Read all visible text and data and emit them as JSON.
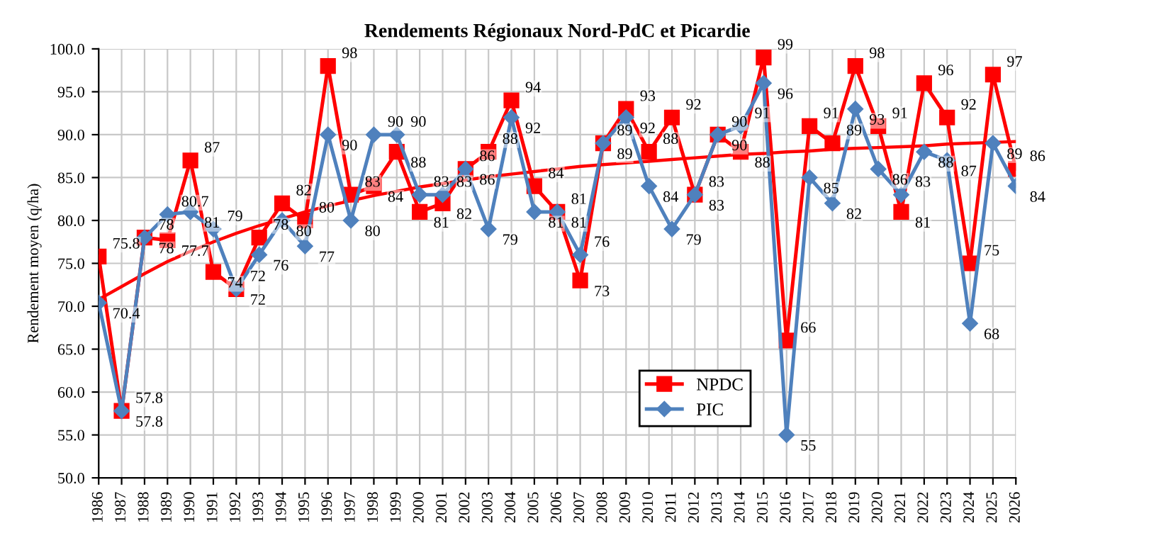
{
  "chart_data": {
    "type": "line",
    "title": "Rendements Régionaux Nord-PdC et Picardie",
    "ylabel": "Rendement moyen (q/ha)",
    "categories": [
      "1986",
      "1987",
      "1988",
      "1989",
      "1990",
      "1991",
      "1992",
      "1993",
      "1994",
      "1995",
      "1996",
      "1997",
      "1998",
      "1999",
      "2000",
      "2001",
      "2002",
      "2003",
      "2004",
      "2005",
      "2006",
      "2007",
      "2008",
      "2009",
      "2010",
      "2011",
      "2012",
      "2013",
      "2014",
      "2015",
      "2016",
      "2017",
      "2018",
      "2019",
      "2020",
      "2021",
      "2022",
      "2023",
      "2024",
      "2025",
      "2026"
    ],
    "series": [
      {
        "name": "NPDC",
        "color": "#ff0000",
        "marker": "square",
        "values": [
          75.8,
          57.8,
          78,
          77.7,
          87,
          74,
          72,
          78,
          82,
          80,
          98,
          83,
          84,
          88,
          81,
          82,
          86,
          88,
          94,
          84,
          81,
          73,
          89,
          93,
          88,
          92,
          83,
          90,
          88,
          99,
          66,
          91,
          89,
          98,
          91,
          81,
          96,
          92,
          75,
          97,
          86
        ],
        "value_labels": [
          "75.8",
          "57.8",
          "78",
          "77.7",
          "87",
          "74",
          "72",
          "78",
          "82",
          "80",
          "98",
          "83",
          "84",
          "88",
          "81",
          "82",
          "86",
          "88",
          "94",
          "84",
          "81",
          "73",
          "89",
          "93",
          "88",
          "92",
          "83",
          "90",
          "88",
          "99",
          "66",
          "91",
          "89",
          "98",
          "91",
          "81",
          "96",
          "92",
          "75",
          "97",
          "86"
        ]
      },
      {
        "name": "PIC",
        "color": "#4f81bd",
        "marker": "diamond",
        "values": [
          70.4,
          57.8,
          78,
          80.7,
          81,
          79,
          72,
          76,
          80,
          77,
          90,
          80,
          90,
          90,
          83,
          83,
          86,
          79,
          92,
          81,
          81,
          76,
          89,
          92,
          84,
          79,
          83,
          90,
          91,
          96,
          55,
          85,
          82,
          93,
          86,
          83,
          88,
          87,
          68,
          89,
          84
        ],
        "value_labels": [
          "70.4",
          "57.8",
          "78",
          "80.7",
          "81",
          "79",
          "72",
          "76",
          "80",
          "77",
          "90",
          "80",
          "90",
          "90",
          "83",
          "83",
          "86",
          "79",
          "92",
          "81",
          "81",
          "76",
          "89",
          "92",
          "84",
          "79",
          "83",
          "90",
          "91",
          "96",
          "55",
          "85",
          "82",
          "93",
          "86",
          "83",
          "88",
          "87",
          "68",
          "89",
          "84"
        ]
      },
      {
        "type": "line",
        "color": "#ff0000",
        "values": [
          70.8,
          72.3,
          73.8,
          75.2,
          76.4,
          77.5,
          78.5,
          79.4,
          80.2,
          81,
          81.7,
          82.3,
          82.9,
          83.4,
          83.9,
          84.3,
          84.7,
          85.1,
          85.4,
          85.7,
          86,
          86.3,
          86.5,
          86.7,
          86.9,
          87.1,
          87.3,
          87.5,
          87.7,
          87.8,
          88,
          88.1,
          88.3,
          88.4,
          88.5,
          88.6,
          88.7,
          88.9,
          89,
          89.1,
          89.2
        ]
      }
    ],
    "ylim": [
      50,
      100
    ],
    "yticks": [
      {
        "value": 50,
        "label": "50.0"
      },
      {
        "value": 55,
        "label": "55.0"
      },
      {
        "value": 60,
        "label": "60.0"
      },
      {
        "value": 65,
        "label": "65.0"
      },
      {
        "value": 70,
        "label": "70.0"
      },
      {
        "value": 75,
        "label": "75.0"
      },
      {
        "value": 80,
        "label": "80.0"
      },
      {
        "value": 85,
        "label": "85.0"
      },
      {
        "value": 90,
        "label": "90.0"
      },
      {
        "value": 95,
        "label": "95.0"
      },
      {
        "value": 100,
        "label": "100.0"
      }
    ],
    "grid": true,
    "legend": "right",
    "line_style": "solid"
  }
}
